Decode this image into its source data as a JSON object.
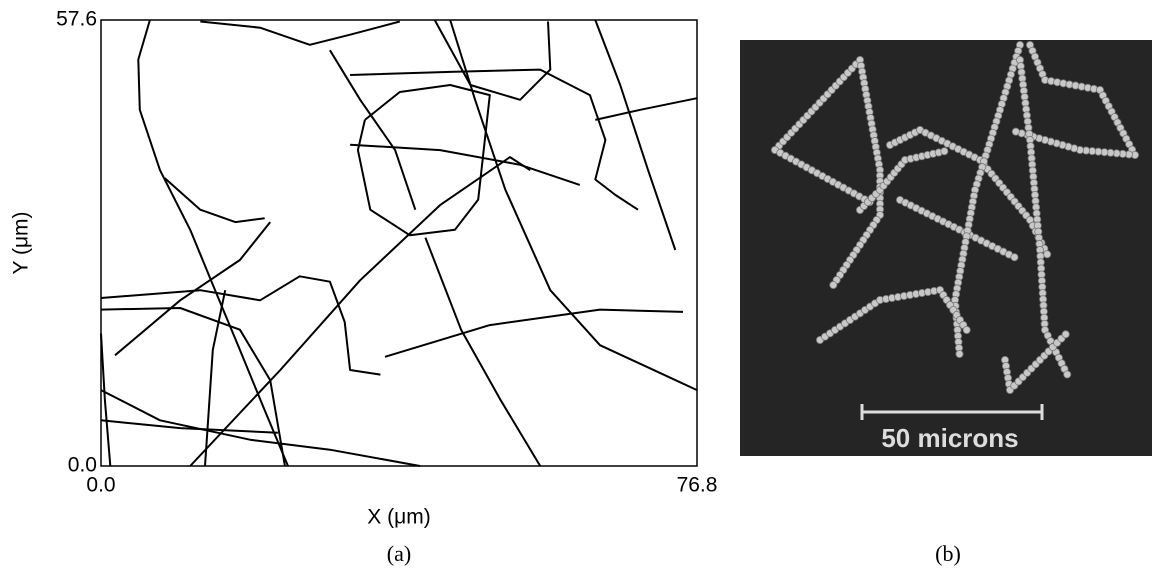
{
  "chart_data": {
    "type": "line",
    "x_label": "X (μm)",
    "y_label": "Y (μm)",
    "caption": "(a)",
    "xlim": [
      0,
      76.8
    ],
    "ylim": [
      0,
      57.6
    ],
    "xticks": [
      {
        "value": 0,
        "label": "0.0"
      },
      {
        "value": 76.8,
        "label": "76.8"
      }
    ],
    "yticks": [
      {
        "value": 0,
        "label": "0.0"
      },
      {
        "value": 57.6,
        "label": "57.6"
      }
    ],
    "color": "#000000",
    "series": [
      {
        "x": [
          6.3,
          4.8,
          5.0,
          7.6,
          11.5,
          14.7,
          17.9,
          21.1,
          24.1
        ],
        "y": [
          57.6,
          52.5,
          46.0,
          38.2,
          30.5,
          22.7,
          15.0,
          7.2,
          0
        ]
      },
      {
        "x": [
          34.0,
          38.5,
          45.0,
          50.1,
          48.6,
          45.6,
          39.8,
          34.7,
          33.1,
          34.0
        ],
        "y": [
          44.7,
          48.3,
          49.2,
          47.9,
          34.4,
          30.5,
          29.8,
          33.1,
          40.8,
          44.7
        ]
      },
      {
        "x": [
          11.5,
          23.1,
          33.4,
          43.7,
          52.7,
          55.3
        ],
        "y": [
          0,
          12.4,
          24.0,
          33.7,
          39.9,
          38.2
        ]
      },
      {
        "x": [
          29.5,
          33.4,
          37.9,
          40.5
        ],
        "y": [
          53.7,
          47.3,
          40.8,
          33.1
        ]
      },
      {
        "x": [
          12.8,
          20.5,
          26.9,
          32.1,
          38.5
        ],
        "y": [
          57.4,
          56.6,
          54.4,
          55.7,
          57.4
        ]
      },
      {
        "x": [
          43.0,
          47.6,
          54.0,
          57.9,
          57.6
        ],
        "y": [
          57.6,
          49.2,
          47.3,
          51.2,
          57.4
        ]
      },
      {
        "x": [
          45.0,
          48.2,
          52.1,
          57.9,
          64.3,
          76.8
        ],
        "y": [
          57.6,
          47.3,
          35.7,
          22.7,
          15.6,
          9.8
        ]
      },
      {
        "x": [
          32.1,
          45.0,
          56.6,
          63.0,
          65.0,
          63.7,
          66.3,
          69.2
        ],
        "y": [
          50.5,
          50.9,
          51.2,
          47.9,
          42.1,
          37.0,
          35.0,
          33.1
        ]
      },
      {
        "x": [
          63.7,
          69.5,
          76.8
        ],
        "y": [
          44.7,
          46.0,
          47.5
        ]
      },
      {
        "x": [
          63.7,
          66.9,
          70.5,
          74.0
        ],
        "y": [
          57.6,
          49.2,
          38.2,
          27.9
        ]
      },
      {
        "x": [
          32.1,
          43.7,
          54.0,
          61.7
        ],
        "y": [
          41.5,
          40.8,
          38.9,
          36.3
        ]
      },
      {
        "x": [
          41.8,
          46.4,
          51.5,
          56.6
        ],
        "y": [
          29.5,
          17.6,
          8.5,
          0
        ]
      },
      {
        "x": [
          36.6,
          50.1,
          64.3,
          75.0
        ],
        "y": [
          14.1,
          18.2,
          20.2,
          19.9
        ]
      },
      {
        "x": [
          0,
          12.8,
          20.5,
          25.6,
          29.5,
          31.4,
          32.1,
          36.0
        ],
        "y": [
          21.7,
          22.7,
          21.4,
          24.5,
          23.8,
          18.6,
          12.4,
          11.8
        ]
      },
      {
        "x": [
          0,
          10.2,
          17.9,
          21.8,
          23.7
        ],
        "y": [
          20.2,
          20.4,
          17.6,
          11.1,
          0
        ]
      },
      {
        "x": [
          1.8,
          10.2,
          17.9,
          21.8
        ],
        "y": [
          14.3,
          21.4,
          26.6,
          31.5
        ]
      },
      {
        "x": [
          0,
          7.6,
          19.2,
          29.5,
          41.1
        ],
        "y": [
          9.8,
          5.9,
          3.4,
          2.1,
          0
        ]
      },
      {
        "x": [
          0,
          10.2,
          22.8
        ],
        "y": [
          5.9,
          4.9,
          4.3
        ]
      },
      {
        "x": [
          0,
          0.5,
          1.2
        ],
        "y": [
          17.1,
          8.5,
          0
        ]
      },
      {
        "x": [
          16.0,
          14.4,
          13.8,
          13.4
        ],
        "y": [
          22.7,
          15.0,
          5.9,
          0
        ]
      },
      {
        "x": [
          8.2,
          12.8,
          17.3,
          21.1
        ],
        "y": [
          37.2,
          33.1,
          31.5,
          32.0
        ]
      }
    ]
  },
  "panel_b": {
    "scale_label": "50 microns",
    "caption": "(b)"
  }
}
